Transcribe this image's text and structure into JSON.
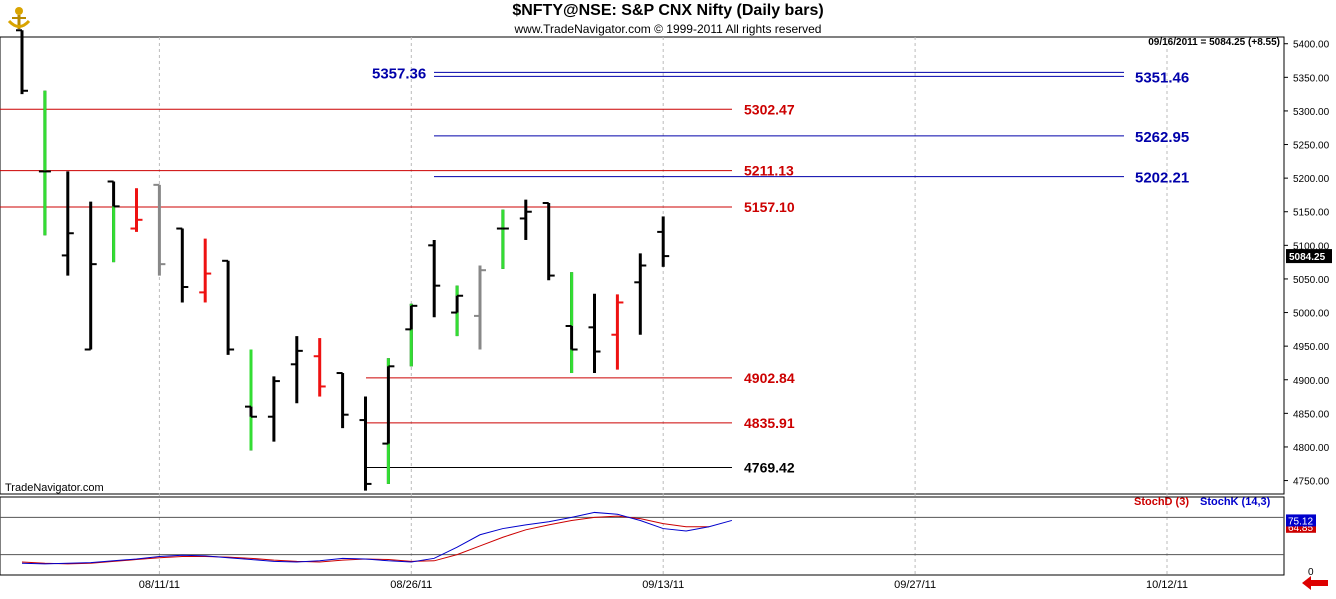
{
  "header": {
    "title": "$NFTY@NSE:  S&P CNX Nifty  (Daily bars)",
    "copyright": "www.TradeNavigator.com © 1999-2011 All rights reserved",
    "last_info": "09/16/2011 = 5084.25 (+8.55)",
    "watermark": "TradeNavigator.com"
  },
  "chart_data": [
    {
      "type": "ohlc",
      "title": "$NFTY@NSE:  S&P CNX Nifty  (Daily bars)",
      "y_axis": {
        "range": [
          4730,
          5410
        ],
        "ticks": [
          4750,
          4800,
          4850,
          4900,
          4950,
          5000,
          5050,
          5100,
          5150,
          5200,
          5250,
          5300,
          5350,
          5400
        ],
        "tick_labels": [
          "4750.00",
          "4800.00",
          "4850.00",
          "4900.00",
          "4950.00",
          "5000.00",
          "5050.00",
          "5100.00",
          "5150.00",
          "5200.00",
          "5250.00",
          "5300.00",
          "5350.00",
          "5400.00"
        ],
        "last_value_label": "5084.25"
      },
      "x_axis": {
        "dates": [
          "08/11/11",
          "08/26/11",
          "09/13/11",
          "09/27/11",
          "10/12/11"
        ],
        "date_bar_index": [
          6,
          17,
          28,
          39,
          50
        ]
      },
      "bars": [
        {
          "o": 5420,
          "h": 5420,
          "l": 5325,
          "c": 5330,
          "color": "#000000"
        },
        {
          "o": 5210,
          "h": 5330,
          "l": 5115,
          "c": 5210,
          "color": "#000000",
          "wick_color": "#33dd33"
        },
        {
          "o": 5085,
          "h": 5210,
          "l": 5055,
          "c": 5118,
          "color": "#000000"
        },
        {
          "o": 4945,
          "h": 5165,
          "l": 4945,
          "c": 5072,
          "color": "#000000"
        },
        {
          "o": 5195,
          "h": 5195,
          "l": 5075,
          "c": 5158,
          "color": "#000000",
          "wick_color": "#33dd33"
        },
        {
          "o": 5125,
          "h": 5185,
          "l": 5120,
          "c": 5138,
          "color": "#ee1111"
        },
        {
          "o": 5190,
          "h": 5190,
          "l": 5055,
          "c": 5072,
          "color": "#888888"
        },
        {
          "o": 5125,
          "h": 5125,
          "l": 5015,
          "c": 5038,
          "color": "#000000"
        },
        {
          "o": 5030,
          "h": 5110,
          "l": 5015,
          "c": 5058,
          "color": "#ee1111"
        },
        {
          "o": 5077,
          "h": 5077,
          "l": 4937,
          "c": 4945,
          "color": "#000000"
        },
        {
          "o": 4860,
          "h": 4945,
          "l": 4795,
          "c": 4845,
          "color": "#000000",
          "wick_color": "#33dd33"
        },
        {
          "o": 4845,
          "h": 4905,
          "l": 4808,
          "c": 4898,
          "color": "#000000"
        },
        {
          "o": 4923,
          "h": 4965,
          "l": 4865,
          "c": 4943,
          "color": "#000000"
        },
        {
          "o": 4935,
          "h": 4962,
          "l": 4875,
          "c": 4890,
          "color": "#ee1111"
        },
        {
          "o": 4910,
          "h": 4910,
          "l": 4828,
          "c": 4848,
          "color": "#000000"
        },
        {
          "o": 4840,
          "h": 4875,
          "l": 4735,
          "c": 4745,
          "color": "#000000"
        },
        {
          "o": 4805,
          "h": 4932,
          "l": 4745,
          "c": 4920,
          "color": "#000000",
          "wick_color": "#33dd33"
        },
        {
          "o": 4975,
          "h": 5013,
          "l": 4920,
          "c": 5010,
          "color": "#000000",
          "wick_color": "#33dd33"
        },
        {
          "o": 5100,
          "h": 5108,
          "l": 4993,
          "c": 5040,
          "color": "#000000"
        },
        {
          "o": 5000,
          "h": 5040,
          "l": 4965,
          "c": 5025,
          "color": "#000000",
          "wick_color": "#33dd33"
        },
        {
          "o": 4995,
          "h": 5070,
          "l": 4945,
          "c": 5063,
          "color": "#888888"
        },
        {
          "o": 5125,
          "h": 5153,
          "l": 5065,
          "c": 5125,
          "color": "#000000",
          "wick_color": "#33dd33"
        },
        {
          "o": 5140,
          "h": 5168,
          "l": 5108,
          "c": 5150,
          "color": "#000000"
        },
        {
          "o": 5163,
          "h": 5163,
          "l": 5048,
          "c": 5055,
          "color": "#000000"
        },
        {
          "o": 4980,
          "h": 5060,
          "l": 4910,
          "c": 4945,
          "color": "#000000",
          "wick_color": "#33dd33"
        },
        {
          "o": 4978,
          "h": 5028,
          "l": 4910,
          "c": 4942,
          "color": "#000000"
        },
        {
          "o": 4967,
          "h": 5027,
          "l": 4915,
          "c": 5015,
          "color": "#ee1111"
        },
        {
          "o": 5045,
          "h": 5088,
          "l": 4967,
          "c": 5070,
          "color": "#000000"
        },
        {
          "o": 5120,
          "h": 5143,
          "l": 5068,
          "c": 5084,
          "color": "#000000"
        }
      ],
      "levels": [
        {
          "value": 5357.36,
          "label": "5357.36",
          "color": "#0000aa",
          "label_side": "left"
        },
        {
          "value": 5351.46,
          "label": "5351.46",
          "color": "#0000aa",
          "label_side": "right"
        },
        {
          "value": 5302.47,
          "label": "5302.47",
          "color": "#cc0000",
          "label_side": "right"
        },
        {
          "value": 5262.95,
          "label": "5262.95",
          "color": "#0000aa",
          "label_side": "right"
        },
        {
          "value": 5211.13,
          "label": "5211.13",
          "color": "#cc0000",
          "label_side": "right"
        },
        {
          "value": 5202.21,
          "label": "5202.21",
          "color": "#0000aa",
          "label_side": "right"
        },
        {
          "value": 5157.1,
          "label": "5157.10",
          "color": "#cc0000",
          "label_side": "right"
        },
        {
          "value": 4902.84,
          "label": "4902.84",
          "color": "#cc0000",
          "label_side": "right"
        },
        {
          "value": 4835.91,
          "label": "4835.91",
          "color": "#cc0000",
          "label_side": "right"
        },
        {
          "value": 4769.42,
          "label": "4769.42",
          "color": "#000000",
          "label_side": "right"
        }
      ]
    },
    {
      "type": "line",
      "indicator": "Stochastic",
      "y_axis": {
        "range": [
          0,
          100
        ],
        "ticks": [
          0
        ],
        "tick_labels": [
          "0"
        ],
        "bands": [
          80,
          20
        ]
      },
      "series": [
        {
          "name": "StochD (3)",
          "color": "#cc0000",
          "last_label": "64.85",
          "values": [
            8,
            6,
            5,
            6,
            9,
            12,
            15,
            17,
            17,
            16,
            14,
            11,
            9,
            8,
            11,
            13,
            12,
            9,
            10,
            20,
            34,
            48,
            60,
            68,
            75,
            80,
            82,
            78,
            70,
            65,
            64.85
          ]
        },
        {
          "name": "StochK (14,3)",
          "color": "#0000cc",
          "last_label": "75.12",
          "values": [
            6,
            5,
            6,
            7,
            10,
            13,
            17,
            19,
            18,
            15,
            12,
            9,
            8,
            10,
            14,
            13,
            10,
            8,
            14,
            32,
            52,
            62,
            68,
            73,
            80,
            88,
            85,
            75,
            62,
            58,
            65,
            75.12
          ]
        }
      ]
    }
  ]
}
